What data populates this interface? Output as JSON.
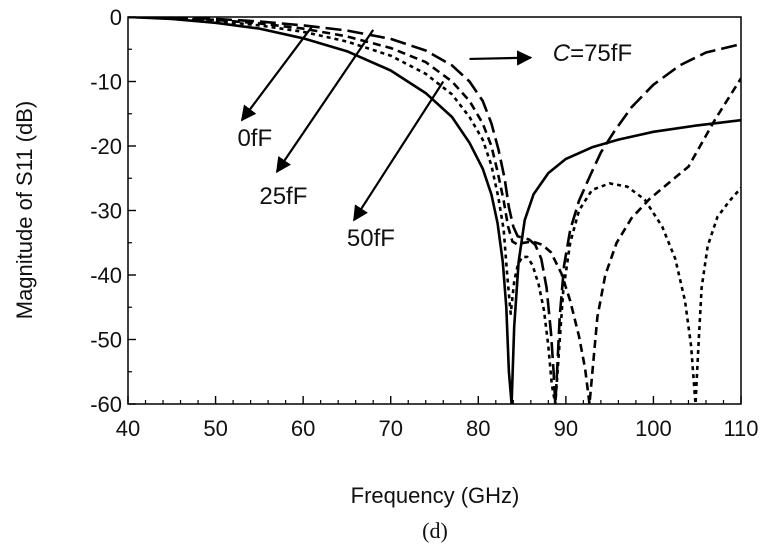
{
  "chart_data": {
    "type": "line",
    "title": "",
    "caption": "(d)",
    "xlabel": "Frequency (GHz)",
    "ylabel": "Magnitude of S11 (dB)",
    "xlim": [
      40,
      110
    ],
    "ylim": [
      -60,
      0
    ],
    "xticks": [
      40,
      50,
      60,
      70,
      80,
      90,
      100,
      110
    ],
    "yticks": [
      0,
      -10,
      -20,
      -30,
      -40,
      -50,
      -60
    ],
    "grid": false,
    "annotations": [
      {
        "text": "0fF",
        "x": 52.5,
        "y": -20,
        "arrow_from": [
          61,
          -1.5
        ],
        "arrow_to": [
          53,
          -16
        ]
      },
      {
        "text": "25fF",
        "x": 55,
        "y": -29,
        "arrow_from": [
          68,
          -2
        ],
        "arrow_to": [
          57,
          -24
        ]
      },
      {
        "text": "50fF",
        "x": 65,
        "y": -35.5,
        "arrow_from": [
          76,
          -10
        ],
        "arrow_to": [
          65.8,
          -31.5
        ]
      },
      {
        "text_prefix": "C",
        "text": "=75fF",
        "x": 88.5,
        "y": -6.8,
        "arrow_from": [
          79,
          -6.5
        ],
        "arrow_to": [
          86,
          -6.3
        ]
      }
    ],
    "series": [
      {
        "dash": "solid",
        "x": [
          40,
          45,
          50,
          55,
          60,
          65,
          70,
          74,
          77,
          79,
          80.5,
          81.5,
          82.2,
          82.8,
          83.2,
          83.5,
          83.8,
          84.1,
          84.6,
          85.3,
          86.3,
          88,
          90,
          93,
          96,
          100,
          105,
          110
        ],
        "y": [
          0,
          -0.3,
          -0.9,
          -1.8,
          -3.3,
          -5.3,
          -8.3,
          -11.8,
          -15.5,
          -19.5,
          -23.5,
          -27.5,
          -32,
          -38,
          -45,
          -55,
          -60,
          -48,
          -38,
          -31.5,
          -27.5,
          -24.2,
          -22,
          -20.2,
          -19,
          -17.8,
          -16.8,
          -16
        ]
      },
      {
        "dash": "dot",
        "x": [
          40,
          45,
          50,
          55,
          60,
          65,
          70,
          74,
          77,
          79,
          80.5,
          81.5,
          82.3,
          82.9,
          83.3,
          83.7,
          84.1,
          84.5,
          85,
          85.6,
          86.2,
          86.9,
          87.5,
          88,
          88.4,
          88.8,
          89.2,
          89.7,
          90.5,
          91.5,
          93,
          95,
          97,
          99,
          101,
          102.5,
          103.6,
          104.3,
          104.8,
          105.1,
          105.5,
          106.2,
          107.3,
          108.7,
          110
        ],
        "y": [
          0,
          -0.2,
          -0.6,
          -1.3,
          -2.3,
          -3.8,
          -6,
          -8.8,
          -12,
          -15.5,
          -19,
          -23,
          -28,
          -33,
          -40,
          -46,
          -41,
          -38.5,
          -37.2,
          -37.2,
          -38.5,
          -41.5,
          -45.5,
          -51,
          -57,
          -60,
          -52,
          -42.5,
          -35,
          -30,
          -26.8,
          -25.8,
          -26.3,
          -28.3,
          -32.5,
          -37.5,
          -44,
          -51,
          -60,
          -52,
          -42,
          -35.5,
          -31,
          -28.5,
          -26.5
        ]
      },
      {
        "dash": "dash",
        "x": [
          40,
          45,
          50,
          55,
          60,
          65,
          70,
          74,
          77,
          79,
          80.5,
          81.5,
          82.2,
          82.9,
          83.4,
          83.9,
          84.5,
          85.2,
          86.2,
          87.3,
          88.3,
          89.5,
          90.5,
          91.5,
          92.2,
          92.7,
          93.1,
          93.6,
          94.5,
          95.8,
          97.5,
          99.5,
          101.5,
          104,
          107,
          110
        ],
        "y": [
          0,
          -0.15,
          -0.45,
          -1,
          -1.8,
          -3,
          -4.8,
          -7,
          -10,
          -13,
          -16.5,
          -20,
          -24,
          -28.5,
          -32.5,
          -34.8,
          -35.3,
          -35,
          -34.8,
          -35.3,
          -36.5,
          -39.8,
          -44,
          -49.5,
          -54.5,
          -60,
          -54,
          -46.5,
          -40,
          -35,
          -31.2,
          -28.3,
          -26,
          -23.2,
          -16,
          -9.5
        ]
      },
      {
        "dash": "longdash",
        "x": [
          40,
          45,
          50,
          55,
          60,
          65,
          70,
          74,
          77,
          79,
          80.5,
          81.5,
          82.3,
          83,
          83.5,
          84,
          84.5,
          85,
          85.8,
          86.5,
          87.2,
          87.8,
          88.3,
          88.6,
          88.8,
          89,
          89.3,
          89.8,
          90.5,
          91.5,
          92.8,
          94,
          95.5,
          97.5,
          100,
          103,
          106,
          110
        ],
        "y": [
          0,
          -0.1,
          -0.3,
          -0.7,
          -1.3,
          -2.1,
          -3.4,
          -5.2,
          -7.5,
          -10,
          -13,
          -16.5,
          -20.5,
          -25,
          -29.5,
          -32.5,
          -34,
          -34.2,
          -34.5,
          -35.3,
          -37.5,
          -42,
          -49,
          -55,
          -60,
          -55,
          -46.5,
          -38.5,
          -33,
          -28.5,
          -24.5,
          -21,
          -17.8,
          -14,
          -10.5,
          -7.5,
          -5.5,
          -4.2
        ]
      }
    ]
  }
}
